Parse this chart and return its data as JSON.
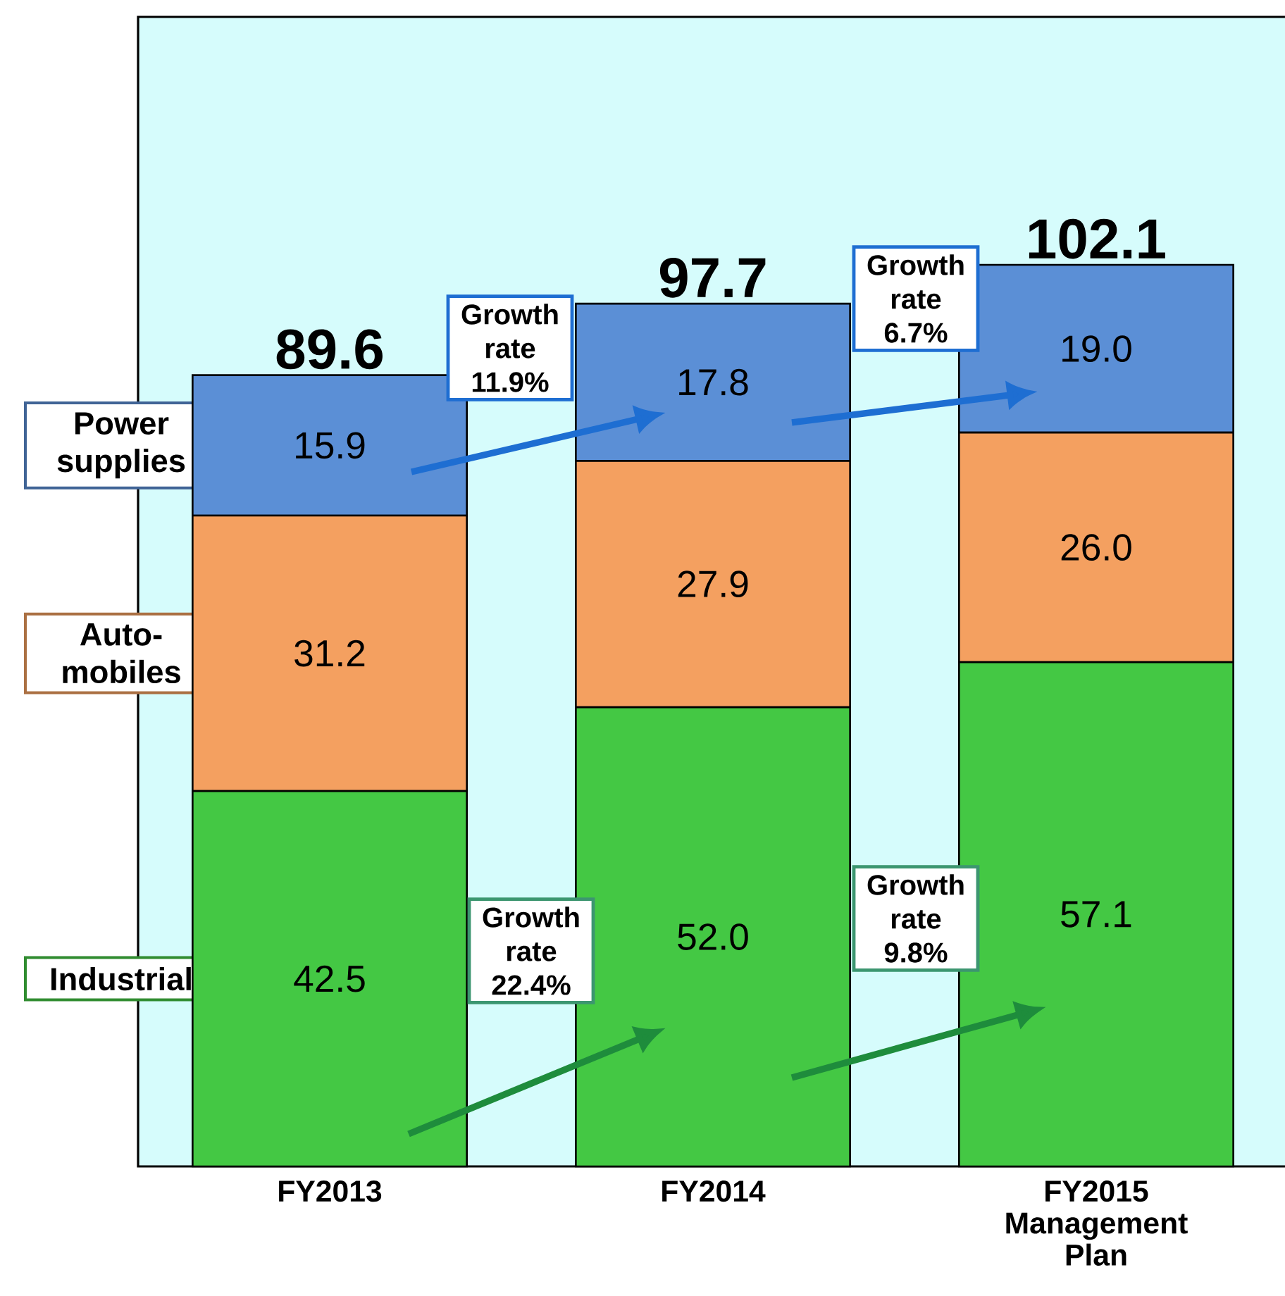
{
  "chart_data": {
    "type": "bar",
    "stacked": true,
    "categories": [
      "FY2013",
      "FY2014",
      "FY2015 Management Plan"
    ],
    "series": [
      {
        "name": "Industrial",
        "color": "#44c844",
        "values": [
          42.5,
          52.0,
          57.1
        ],
        "value_labels": [
          "42.5",
          "52.0",
          "57.1"
        ]
      },
      {
        "name": "Auto-mobiles",
        "color": "#f4a060",
        "values": [
          31.2,
          27.9,
          26.0
        ],
        "value_labels": [
          "31.2",
          "27.9",
          "26.0"
        ]
      },
      {
        "name": "Power supplies",
        "color": "#5b8fd6",
        "values": [
          15.9,
          17.8,
          19.0
        ],
        "value_labels": [
          "15.9",
          "17.8",
          "19.0"
        ]
      }
    ],
    "totals": [
      "89.6",
      "97.7",
      "102.1"
    ],
    "legend": "left",
    "tick_labels": "x",
    "annotations": [
      "Growth rate 11.9%",
      "Growth rate 6.7%",
      "Growth rate 22.4%",
      "Growth rate 9.8%"
    ]
  }
}
